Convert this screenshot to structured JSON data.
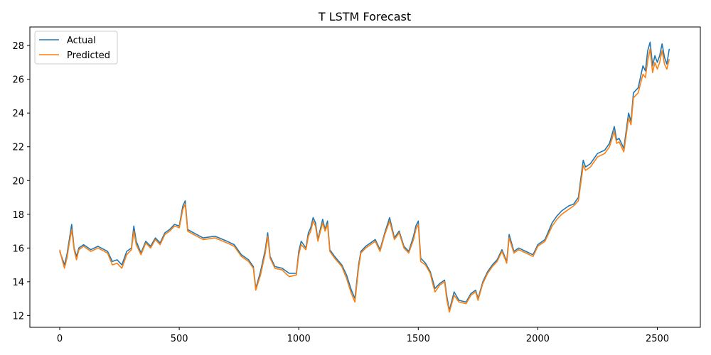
{
  "chart_data": {
    "type": "line",
    "title": "T LSTM Forecast",
    "xlabel": "",
    "ylabel": "",
    "xlim": [
      -125,
      2680
    ],
    "ylim": [
      11.3,
      29.1
    ],
    "xticks": [
      0,
      500,
      1000,
      1500,
      2000,
      2500
    ],
    "yticks": [
      12,
      14,
      16,
      18,
      20,
      22,
      24,
      26,
      28
    ],
    "grid": false,
    "legend_position": "top-left",
    "series": [
      {
        "name": "Actual",
        "color": "#1f77b4",
        "x": [
          0,
          10,
          20,
          30,
          40,
          50,
          60,
          70,
          80,
          100,
          130,
          160,
          200,
          220,
          240,
          260,
          280,
          300,
          310,
          320,
          340,
          360,
          380,
          400,
          420,
          440,
          460,
          480,
          500,
          515,
          525,
          535,
          560,
          600,
          650,
          700,
          730,
          760,
          790,
          810,
          820,
          840,
          860,
          870,
          880,
          900,
          930,
          960,
          990,
          1000,
          1010,
          1030,
          1040,
          1050,
          1060,
          1070,
          1080,
          1100,
          1110,
          1120,
          1130,
          1150,
          1180,
          1200,
          1220,
          1235,
          1250,
          1260,
          1280,
          1300,
          1320,
          1340,
          1360,
          1380,
          1400,
          1420,
          1440,
          1460,
          1480,
          1490,
          1500,
          1510,
          1530,
          1550,
          1560,
          1570,
          1590,
          1610,
          1620,
          1630,
          1650,
          1670,
          1700,
          1720,
          1740,
          1750,
          1770,
          1790,
          1810,
          1830,
          1850,
          1870,
          1880,
          1900,
          1920,
          1950,
          1980,
          2000,
          2030,
          2060,
          2080,
          2100,
          2130,
          2150,
          2170,
          2190,
          2200,
          2220,
          2250,
          2280,
          2300,
          2320,
          2330,
          2340,
          2360,
          2380,
          2390,
          2400,
          2420,
          2440,
          2450,
          2460,
          2470,
          2480,
          2490,
          2500,
          2510,
          2520,
          2530,
          2540,
          2550
        ],
        "y": [
          15.8,
          15.4,
          15.0,
          15.6,
          16.5,
          17.4,
          16.0,
          15.5,
          16.0,
          16.2,
          15.9,
          16.1,
          15.8,
          15.2,
          15.3,
          15.0,
          15.8,
          16.0,
          17.3,
          16.4,
          15.7,
          16.4,
          16.1,
          16.6,
          16.3,
          16.9,
          17.1,
          17.4,
          17.3,
          18.5,
          18.8,
          17.1,
          16.9,
          16.6,
          16.7,
          16.4,
          16.2,
          15.6,
          15.3,
          14.9,
          13.6,
          14.6,
          15.9,
          16.9,
          15.5,
          14.9,
          14.8,
          14.5,
          14.5,
          15.8,
          16.4,
          16.0,
          16.9,
          17.2,
          17.8,
          17.5,
          16.5,
          17.7,
          17.1,
          17.6,
          15.9,
          15.5,
          15.0,
          14.4,
          13.5,
          13.0,
          15.0,
          15.8,
          16.1,
          16.3,
          16.5,
          15.9,
          16.9,
          17.8,
          16.6,
          17.0,
          16.1,
          15.8,
          16.7,
          17.3,
          17.6,
          15.4,
          15.1,
          14.6,
          14.1,
          13.6,
          13.9,
          14.1,
          13.1,
          12.3,
          13.4,
          12.9,
          12.8,
          13.3,
          13.5,
          13.0,
          14.0,
          14.6,
          15.0,
          15.3,
          15.9,
          15.2,
          16.8,
          15.8,
          16.0,
          15.8,
          15.6,
          16.2,
          16.5,
          17.5,
          17.9,
          18.2,
          18.5,
          18.6,
          19.0,
          21.2,
          20.8,
          21.0,
          21.6,
          21.8,
          22.2,
          23.2,
          22.4,
          22.5,
          21.9,
          24.0,
          23.5,
          25.2,
          25.5,
          26.8,
          26.5,
          27.7,
          28.2,
          26.8,
          27.4,
          27.0,
          27.4,
          28.1,
          27.3,
          26.9,
          27.8
        ]
      },
      {
        "name": "Predicted",
        "color": "#ff7f0e",
        "x": [
          0,
          10,
          20,
          30,
          40,
          50,
          60,
          70,
          80,
          100,
          130,
          160,
          200,
          220,
          240,
          260,
          280,
          300,
          310,
          320,
          340,
          360,
          380,
          400,
          420,
          440,
          460,
          480,
          500,
          515,
          525,
          535,
          560,
          600,
          650,
          700,
          730,
          760,
          790,
          810,
          820,
          840,
          860,
          870,
          880,
          900,
          930,
          960,
          990,
          1000,
          1010,
          1030,
          1040,
          1050,
          1060,
          1070,
          1080,
          1100,
          1110,
          1120,
          1130,
          1150,
          1180,
          1200,
          1220,
          1235,
          1250,
          1260,
          1280,
          1300,
          1320,
          1340,
          1360,
          1380,
          1400,
          1420,
          1440,
          1460,
          1480,
          1490,
          1500,
          1510,
          1530,
          1550,
          1560,
          1570,
          1590,
          1610,
          1620,
          1630,
          1650,
          1670,
          1700,
          1720,
          1740,
          1750,
          1770,
          1790,
          1810,
          1830,
          1850,
          1870,
          1880,
          1900,
          1920,
          1950,
          1980,
          2000,
          2030,
          2060,
          2080,
          2100,
          2130,
          2150,
          2170,
          2190,
          2200,
          2220,
          2250,
          2280,
          2300,
          2320,
          2330,
          2340,
          2360,
          2380,
          2390,
          2400,
          2420,
          2440,
          2450,
          2460,
          2470,
          2480,
          2490,
          2500,
          2510,
          2520,
          2530,
          2540,
          2550
        ],
        "y": [
          15.9,
          15.3,
          14.8,
          15.4,
          16.3,
          17.1,
          15.9,
          15.3,
          15.9,
          16.1,
          15.8,
          16.0,
          15.7,
          15.0,
          15.1,
          14.8,
          15.6,
          15.9,
          17.0,
          16.2,
          15.6,
          16.3,
          16.0,
          16.5,
          16.2,
          16.8,
          17.0,
          17.3,
          17.2,
          18.3,
          18.6,
          17.0,
          16.8,
          16.5,
          16.6,
          16.3,
          16.1,
          15.5,
          15.2,
          14.8,
          13.5,
          14.4,
          15.7,
          16.7,
          15.4,
          14.8,
          14.7,
          14.3,
          14.4,
          15.6,
          16.2,
          15.9,
          16.7,
          17.0,
          17.6,
          17.3,
          16.4,
          17.5,
          17.0,
          17.4,
          15.8,
          15.4,
          14.9,
          14.2,
          13.3,
          12.8,
          14.8,
          15.7,
          16.0,
          16.2,
          16.4,
          15.8,
          16.8,
          17.6,
          16.5,
          16.9,
          16.0,
          15.7,
          16.5,
          17.1,
          17.4,
          15.2,
          15.0,
          14.5,
          13.9,
          13.4,
          13.8,
          14.0,
          12.9,
          12.2,
          13.2,
          12.8,
          12.7,
          13.2,
          13.4,
          12.9,
          13.9,
          14.5,
          14.9,
          15.2,
          15.8,
          15.1,
          16.6,
          15.7,
          15.9,
          15.7,
          15.5,
          16.1,
          16.4,
          17.3,
          17.7,
          18.0,
          18.3,
          18.5,
          18.8,
          20.9,
          20.6,
          20.8,
          21.4,
          21.6,
          22.0,
          22.9,
          22.2,
          22.3,
          21.7,
          23.7,
          23.3,
          24.9,
          25.2,
          26.3,
          26.1,
          27.1,
          27.8,
          26.4,
          27.0,
          26.6,
          27.0,
          27.7,
          26.9,
          26.6,
          27.2
        ]
      }
    ]
  }
}
